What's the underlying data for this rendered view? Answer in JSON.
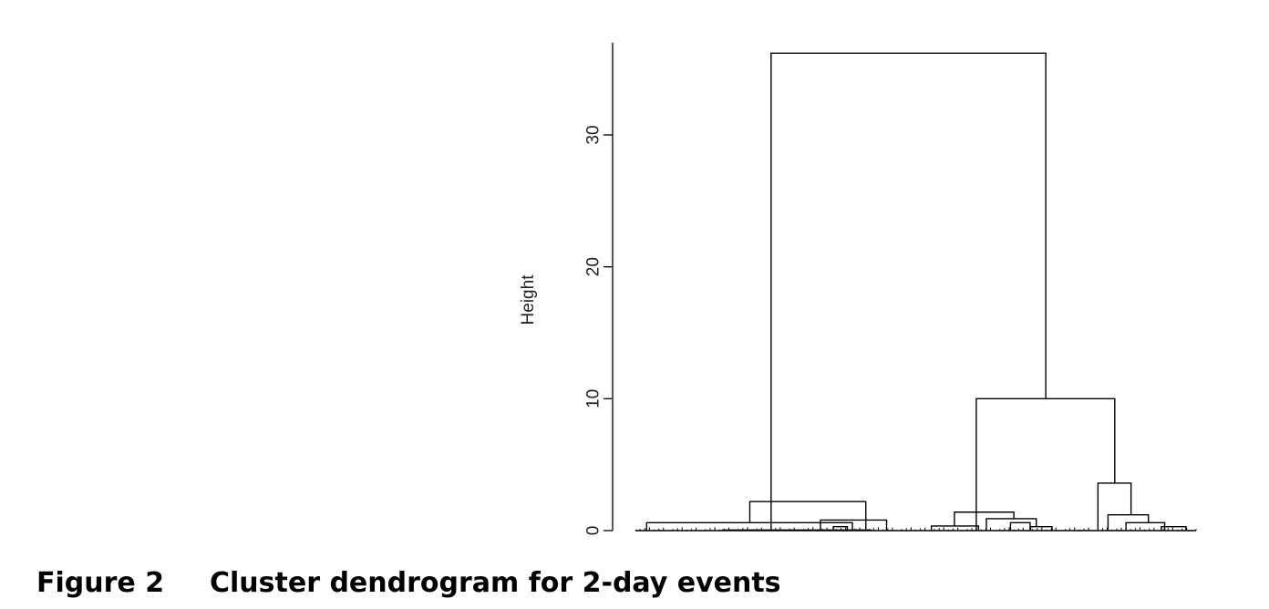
{
  "caption": {
    "number": "Figure 2",
    "text": "Cluster dendrogram for 2-day events"
  },
  "chart_data": {
    "type": "dendrogram",
    "ylabel": "Height",
    "ylim": [
      0,
      37
    ],
    "yticks": [
      0,
      10,
      20,
      30
    ],
    "grid": false,
    "leaf_range": [
      0,
      100
    ],
    "merges": [
      {
        "x1": 2,
        "x2": 38.7,
        "h": 0.6
      },
      {
        "x1": 15.5,
        "x2": 42,
        "h": 0.05
      },
      {
        "x1": 33,
        "x2": 44.8,
        "h": 0.8
      },
      {
        "x1": 35.3,
        "x2": 37.8,
        "h": 0.3
      },
      {
        "x1": 20.4,
        "x2": 41.1,
        "h": 2.2
      },
      {
        "x1": 52.8,
        "x2": 61.2,
        "h": 0.35
      },
      {
        "x1": 62.6,
        "x2": 71.5,
        "h": 0.9
      },
      {
        "x1": 66.9,
        "x2": 70.4,
        "h": 0.6
      },
      {
        "x1": 56.9,
        "x2": 67.5,
        "h": 1.4
      },
      {
        "x1": 70.5,
        "x2": 74.3,
        "h": 0.3
      },
      {
        "x1": 84.3,
        "x2": 91.5,
        "h": 1.2
      },
      {
        "x1": 87.5,
        "x2": 94.4,
        "h": 0.6
      },
      {
        "x1": 93.8,
        "x2": 98.2,
        "h": 0.3
      },
      {
        "x1": 82.5,
        "x2": 88.4,
        "h": 3.6
      },
      {
        "x1": 60.8,
        "x2": 85.5,
        "h": 10.0
      },
      {
        "x1": 24.2,
        "x2": 73.2,
        "h": 36.2
      }
    ]
  }
}
